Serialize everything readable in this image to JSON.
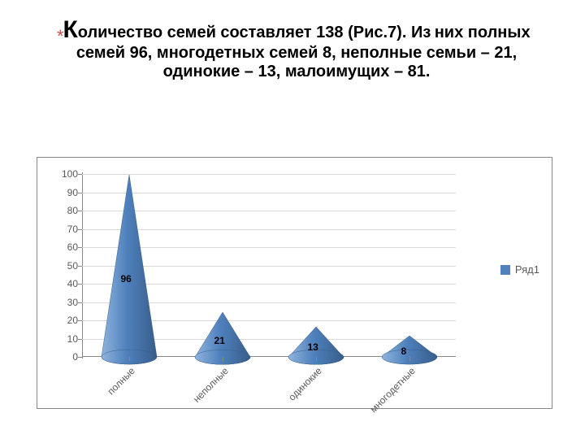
{
  "heading": {
    "asterisk": "*",
    "asterisk_color": "#c0504d",
    "big_letter": "К",
    "text_line1": "оличество семей составляет 138 (Рис.7). Из",
    "text_line2": "них полных семей 96, многодетных семей 8, неполные семьи – 21, одинокие – 13, малоимущих – 81.",
    "color": "#000000"
  },
  "chart": {
    "type": "3d-cone",
    "categories": [
      "полные",
      "неполные",
      "одинокие",
      "многодетные"
    ],
    "values": [
      96,
      21,
      13,
      8
    ],
    "series_name": "Ряд1",
    "series_color": "#4f81bd",
    "series_color_light": "#8fb4dd",
    "series_color_dark": "#385d8a",
    "ylim": [
      0,
      100
    ],
    "ytick_step": 10,
    "grid_color": "#d9d9d9",
    "axis_color": "#888888",
    "tick_font_size": 12,
    "background": "#ffffff",
    "legend_swatch": "#4f81bd"
  }
}
